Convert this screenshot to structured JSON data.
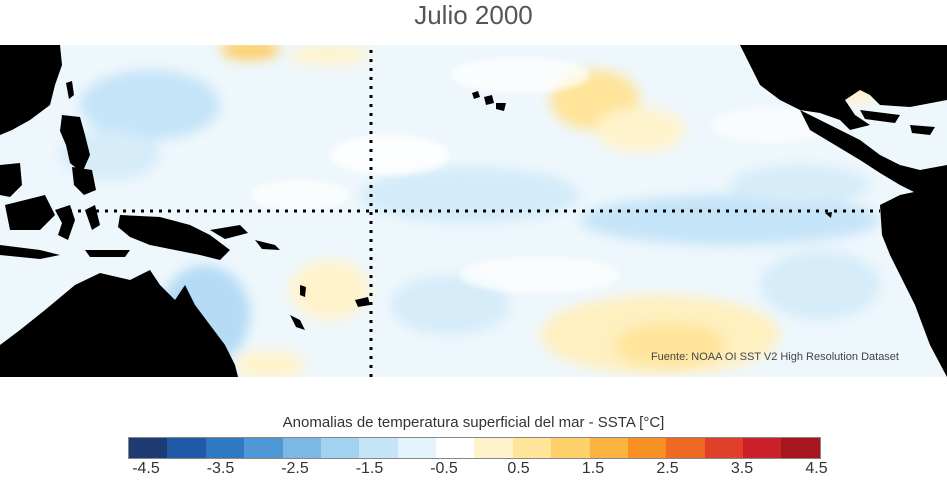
{
  "title": "Julio 2000",
  "source": "Fuente: NOAA OI SST V2 High Resolution Dataset",
  "colorbar": {
    "label": "Anomalias de temperatura superficial del mar - SSTA  [°C]",
    "colors": [
      "#1f3b73",
      "#1f5aa6",
      "#2f78c2",
      "#4f98d6",
      "#7bb8e6",
      "#a2d2f2",
      "#c5e4f8",
      "#e3f2fb",
      "#ffffff",
      "#fff3cc",
      "#ffe49a",
      "#fdd06a",
      "#fbb33f",
      "#f79125",
      "#ee6a24",
      "#e0402a",
      "#c9202a",
      "#a8151e"
    ],
    "ticks": [
      "-4.5",
      "-3.5",
      "-2.5",
      "-1.5",
      "-0.5",
      "0.5",
      "1.5",
      "2.5",
      "3.5",
      "4.5"
    ]
  },
  "map": {
    "land_color": "#000000",
    "ocean_base_color": "#e3f2fb",
    "reference_lines": [
      "equator",
      "dateline"
    ]
  }
}
